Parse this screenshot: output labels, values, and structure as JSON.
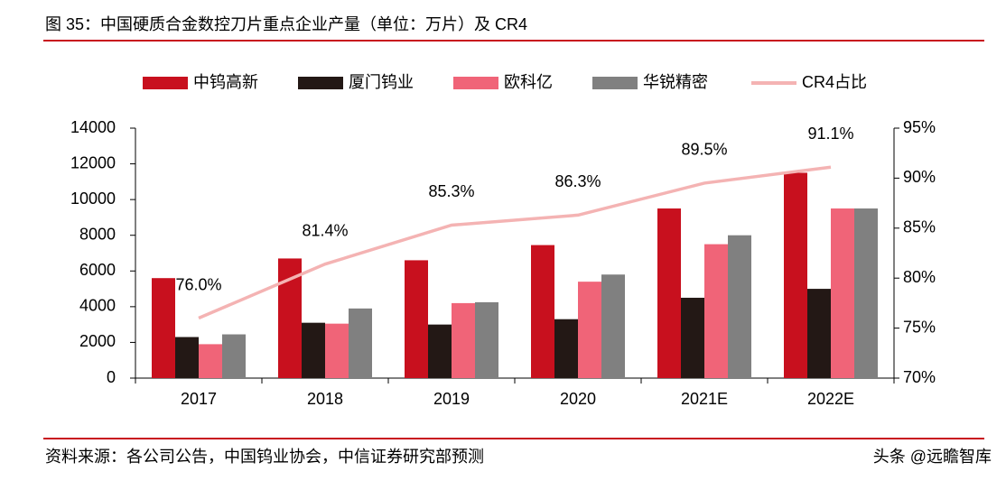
{
  "chart_data": {
    "type": "bar",
    "title": "图 35：中国硬质合金数控刀片重点企业产量（单位：万片）及 CR4",
    "categories": [
      "2017",
      "2018",
      "2019",
      "2020",
      "2021E",
      "2022E"
    ],
    "series": [
      {
        "name": "中钨高新",
        "color": "#c8101e",
        "values": [
          5600,
          6700,
          6600,
          7450,
          9500,
          11500
        ]
      },
      {
        "name": "厦门钨业",
        "color": "#231815",
        "values": [
          2300,
          3100,
          3000,
          3300,
          4500,
          5000
        ]
      },
      {
        "name": "欧科亿",
        "color": "#f06478",
        "values": [
          1900,
          3050,
          4200,
          5400,
          7500,
          9500
        ]
      },
      {
        "name": "华锐精密",
        "color": "#808080",
        "values": [
          2450,
          3900,
          4250,
          5800,
          8000,
          9500
        ]
      },
      {
        "name": "CR4占比",
        "color": "#f4b3b3",
        "axis": "y2",
        "values": [
          76.0,
          81.4,
          85.3,
          86.3,
          89.5,
          91.1
        ],
        "value_labels": [
          "76.0%",
          "81.4%",
          "85.3%",
          "86.3%",
          "89.5%",
          "91.1%"
        ]
      }
    ],
    "ylim": [
      0,
      14000
    ],
    "yticks": [
      0,
      2000,
      4000,
      6000,
      8000,
      10000,
      12000,
      14000
    ],
    "y2lim": [
      70,
      95
    ],
    "y2ticks": [
      {
        "value": 70,
        "label": "70%"
      },
      {
        "value": 75,
        "label": "75%"
      },
      {
        "value": 80,
        "label": "80%"
      },
      {
        "value": 85,
        "label": "85%"
      },
      {
        "value": 90,
        "label": "90%"
      },
      {
        "value": 95,
        "label": "95%"
      }
    ],
    "grid": false,
    "source": "资料来源：各公司公告，中国钨业协会，中信证券研究部预测",
    "watermark": "头条 @远瞻智库"
  }
}
